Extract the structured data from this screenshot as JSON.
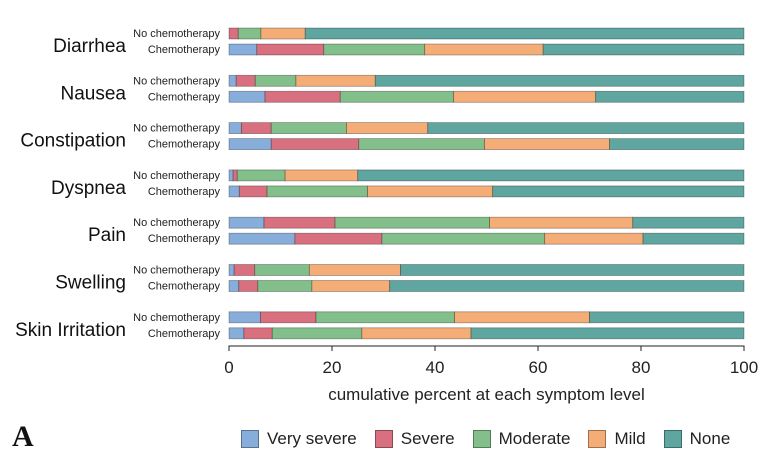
{
  "panel_label": "A",
  "colors": {
    "Very severe": "#87aedb",
    "Severe": "#d9707f",
    "Moderate": "#82bf8a",
    "Mild": "#f5ad78",
    "None": "#5fa6a0"
  },
  "chart_data": {
    "type": "bar",
    "orientation": "horizontal",
    "stacking": "cumulative",
    "xlabel": "cumulative percent at each symptom level",
    "xlim": [
      0,
      100
    ],
    "xticks": [
      0,
      20,
      40,
      60,
      80,
      100
    ],
    "levels": [
      "Very severe",
      "Severe",
      "Moderate",
      "Mild",
      "None"
    ],
    "groups": [
      {
        "symptom": "Diarrhea",
        "bars": [
          {
            "label": "No chemotherapy",
            "cumulative": [
              0,
              1.8,
              6.2,
              14.8,
              100
            ]
          },
          {
            "label": "Chemotherapy",
            "cumulative": [
              5.4,
              18.4,
              38.0,
              61.0,
              100
            ]
          }
        ]
      },
      {
        "symptom": "Nausea",
        "bars": [
          {
            "label": "No chemotherapy",
            "cumulative": [
              1.4,
              5.1,
              13.0,
              28.4,
              100
            ]
          },
          {
            "label": "Chemotherapy",
            "cumulative": [
              7.0,
              21.6,
              43.6,
              71.2,
              100
            ]
          }
        ]
      },
      {
        "symptom": "Constipation",
        "bars": [
          {
            "label": "No chemotherapy",
            "cumulative": [
              2.4,
              8.2,
              22.8,
              38.6,
              100
            ]
          },
          {
            "label": "Chemotherapy",
            "cumulative": [
              8.2,
              25.2,
              49.6,
              73.9,
              100
            ]
          }
        ]
      },
      {
        "symptom": "Dyspnea",
        "bars": [
          {
            "label": "No chemotherapy",
            "cumulative": [
              0.8,
              1.6,
              10.9,
              25.0,
              100
            ]
          },
          {
            "label": "Chemotherapy",
            "cumulative": [
              2.0,
              7.4,
              26.9,
              51.2,
              100
            ]
          }
        ]
      },
      {
        "symptom": "Pain",
        "bars": [
          {
            "label": "No chemotherapy",
            "cumulative": [
              6.8,
              20.6,
              50.6,
              78.4,
              100
            ]
          },
          {
            "label": "Chemotherapy",
            "cumulative": [
              12.8,
              29.7,
              61.3,
              80.4,
              100
            ]
          }
        ]
      },
      {
        "symptom": "Swelling",
        "bars": [
          {
            "label": "No chemotherapy",
            "cumulative": [
              1.0,
              5.0,
              15.6,
              33.3,
              100
            ]
          },
          {
            "label": "Chemotherapy",
            "cumulative": [
              1.9,
              5.6,
              16.1,
              31.2,
              100
            ]
          }
        ]
      },
      {
        "symptom": "Skin Irritation",
        "bars": [
          {
            "label": "No chemotherapy",
            "cumulative": [
              6.1,
              16.9,
              43.8,
              70.0,
              100
            ]
          },
          {
            "label": "Chemotherapy",
            "cumulative": [
              2.9,
              8.4,
              25.8,
              47.0,
              100
            ]
          }
        ]
      }
    ],
    "legend": {
      "position": "bottom"
    },
    "grid": false
  }
}
